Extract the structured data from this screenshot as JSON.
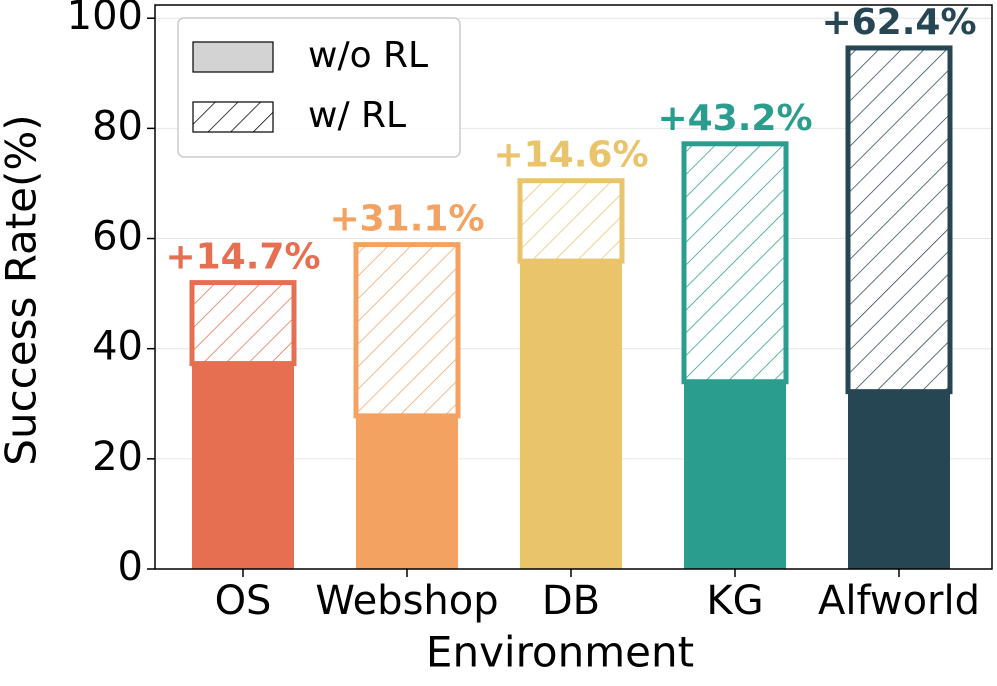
{
  "chart_data": {
    "type": "stacked_bar",
    "xlabel": "Environment",
    "ylabel": "Success Rate(%)",
    "categories": [
      "OS",
      "Webshop",
      "DB",
      "KG",
      "Alfworld"
    ],
    "category_colors": [
      "#e76f51",
      "#f4a261",
      "#e9c46a",
      "#2a9d8f",
      "#264653"
    ],
    "series": [
      {
        "name": "w/o RL",
        "color": "#d3d3d3",
        "values": [
          37.3,
          27.8,
          55.9,
          34.0,
          32.2
        ]
      },
      {
        "name": "w/ RL",
        "color": "#ffffff",
        "hatch": true,
        "values": [
          14.7,
          31.1,
          14.6,
          43.2,
          62.4
        ],
        "value_labels": [
          "+14.7%",
          "+31.1%",
          "+14.6%",
          "+43.2%",
          "+62.4%"
        ]
      }
    ],
    "ylim": [
      0,
      102.4
    ],
    "yticks": [
      0,
      20,
      40,
      60,
      80,
      100
    ],
    "grid": true,
    "legend": "upper left"
  }
}
